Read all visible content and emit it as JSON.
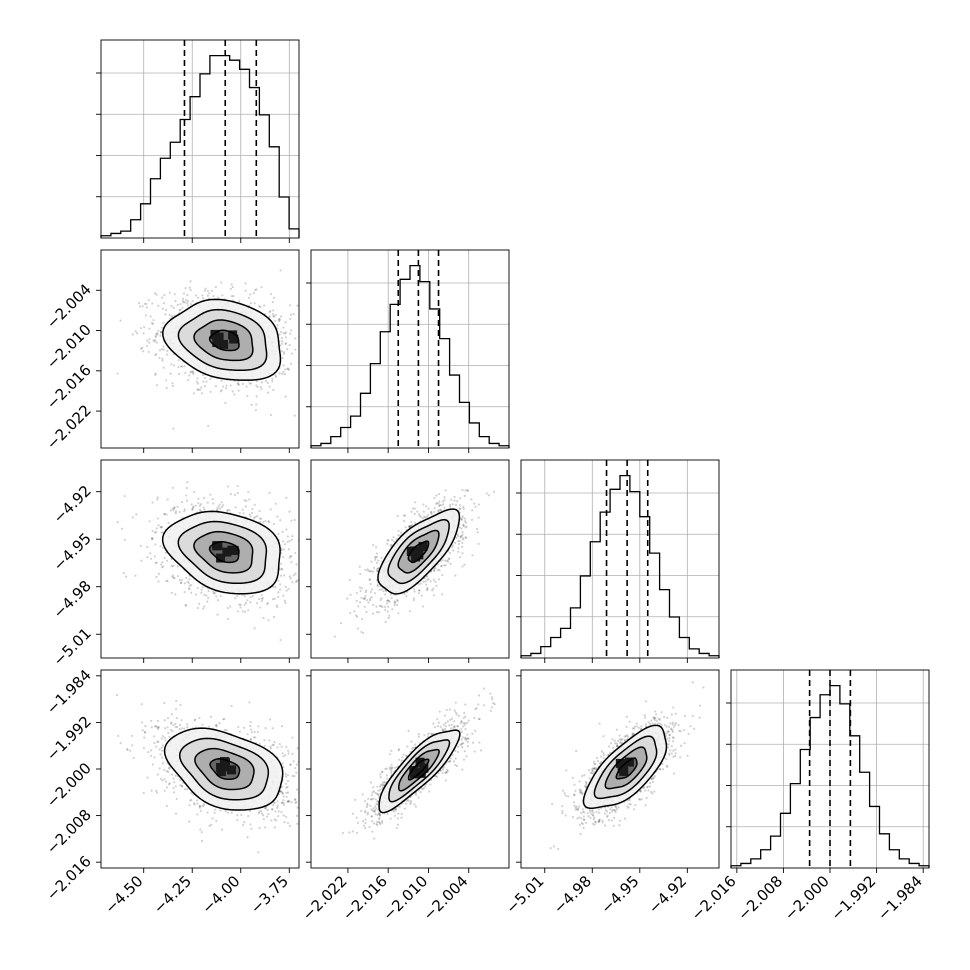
{
  "chart_data": {
    "type": "corner",
    "parameters": [
      {
        "id": "p1",
        "median": -4.08,
        "q16": -4.29,
        "q84": -3.92,
        "range": [
          -4.72,
          -3.7
        ],
        "ticks": [
          -4.5,
          -4.25,
          -4.0,
          -3.75
        ],
        "tick_labels": [
          "−4.50",
          "−4.25",
          "−4.00",
          "−3.75"
        ],
        "sigma_l": 0.17,
        "sigma_r": 0.13,
        "hist_bins": 20,
        "hist_counts": [
          1,
          2,
          3,
          8,
          15,
          26,
          35,
          42,
          52,
          62,
          72,
          80,
          80,
          78,
          74,
          66,
          54,
          40,
          18,
          4
        ]
      },
      {
        "id": "p2",
        "median": -2.0115,
        "q16": -2.0145,
        "q84": -2.0085,
        "range": [
          -2.0275,
          -1.998
        ],
        "ticks": [
          -2.022,
          -2.016,
          -2.01,
          -2.004
        ],
        "tick_labels": [
          "−2.022",
          "−2.016",
          "−2.010",
          "−2.004"
        ],
        "sigma_l": 0.003,
        "sigma_r": 0.003,
        "hist_bins": 20,
        "hist_counts": [
          1,
          2,
          5,
          9,
          14,
          24,
          37,
          51,
          63,
          74,
          80,
          73,
          61,
          48,
          32,
          20,
          11,
          5,
          2,
          1
        ]
      },
      {
        "id": "p3",
        "median": -4.958,
        "q16": -4.971,
        "q84": -4.945,
        "range": [
          -5.025,
          -4.9
        ],
        "ticks": [
          -5.01,
          -4.98,
          -4.95,
          -4.92
        ],
        "tick_labels": [
          "−5.01",
          "−4.98",
          "−4.95",
          "−4.92"
        ],
        "sigma_l": 0.013,
        "sigma_r": 0.013,
        "hist_bins": 20,
        "hist_counts": [
          1,
          2,
          5,
          9,
          13,
          22,
          36,
          51,
          64,
          74,
          80,
          73,
          62,
          46,
          30,
          18,
          9,
          4,
          2,
          1
        ]
      },
      {
        "id": "p4",
        "median": -2.0,
        "q16": -2.0035,
        "q84": -1.9965,
        "range": [
          -2.017,
          -1.983
        ],
        "ticks": [
          -2.016,
          -2.008,
          -2.0,
          -1.992,
          -1.984
        ],
        "tick_labels": [
          "−2.016",
          "−2.008",
          "−2.000",
          "−1.992",
          "−1.984"
        ],
        "sigma_l": 0.0035,
        "sigma_r": 0.0035,
        "hist_bins": 20,
        "hist_counts": [
          1,
          2,
          4,
          8,
          14,
          24,
          37,
          52,
          66,
          76,
          80,
          72,
          58,
          42,
          27,
          15,
          8,
          4,
          2,
          1
        ]
      }
    ],
    "correlations": [
      {
        "x": 0,
        "y": 1,
        "r": -0.2
      },
      {
        "x": 0,
        "y": 2,
        "r": -0.25
      },
      {
        "x": 1,
        "y": 2,
        "r": 0.7
      },
      {
        "x": 0,
        "y": 3,
        "r": -0.35
      },
      {
        "x": 1,
        "y": 3,
        "r": 0.85
      },
      {
        "x": 2,
        "y": 3,
        "r": 0.7
      }
    ],
    "contour_levels_sigma": [
      0.5,
      1.0,
      1.5,
      2.0
    ],
    "colors": {
      "ink": "#000000",
      "grid": "#b0b0b0",
      "scatter": "#000000"
    },
    "grid": true
  }
}
